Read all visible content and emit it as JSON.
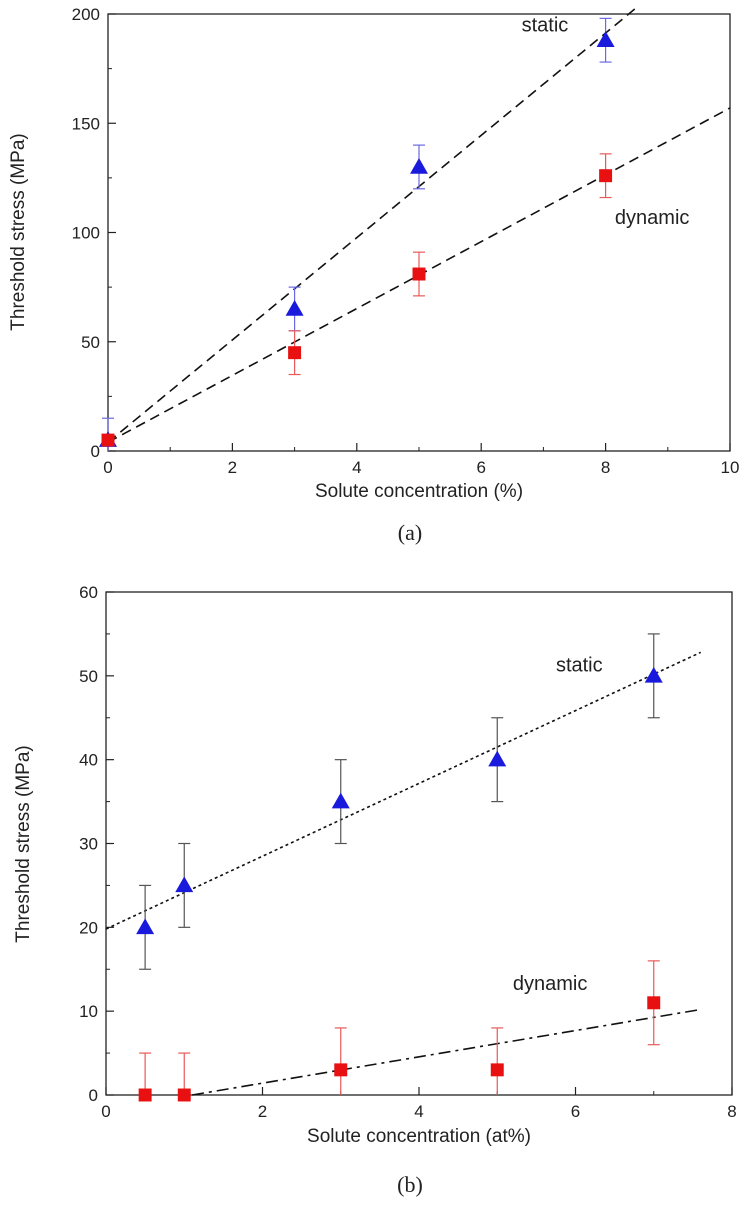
{
  "chart_data": [
    {
      "type": "scatter",
      "panel_label": "(a)",
      "xlabel": "Solute concentration (%)",
      "ylabel": "Threshold stress (MPa)",
      "xlim": [
        0,
        10
      ],
      "ylim": [
        0,
        200
      ],
      "xticks": [
        0,
        2,
        4,
        6,
        8,
        10
      ],
      "yticks": [
        0,
        50,
        100,
        150,
        200
      ],
      "grid": false,
      "series": [
        {
          "name": "static",
          "marker": "triangle",
          "color": "#1a1adc",
          "errorbar_color": "#6a6ae0",
          "x": [
            0,
            3,
            5,
            8
          ],
          "y": [
            5,
            65,
            130,
            188
          ],
          "error": [
            10,
            10,
            10,
            10
          ],
          "fit_line": {
            "style": "dashed",
            "x": [
              0,
              8.5
            ],
            "y": [
              4,
              203
            ]
          }
        },
        {
          "name": "dynamic",
          "marker": "square",
          "color": "#e81010",
          "errorbar_color": "#e85a5a",
          "x": [
            0,
            3,
            5,
            8
          ],
          "y": [
            5,
            45,
            81,
            126
          ],
          "error": [
            2,
            10,
            10,
            10
          ],
          "fit_line": {
            "style": "dashed",
            "x": [
              0,
              10
            ],
            "y": [
              4,
              157
            ]
          }
        }
      ],
      "annotations": [
        {
          "text": "static",
          "x": 6.65,
          "y": 192
        },
        {
          "text": "dynamic",
          "x": 8.15,
          "y": 104
        }
      ]
    },
    {
      "type": "scatter",
      "panel_label": "(b)",
      "xlabel": "Solute concentration (at%)",
      "ylabel": "Threshold stress (MPa)",
      "xlim": [
        0,
        8
      ],
      "ylim": [
        0,
        60
      ],
      "xticks": [
        0,
        2,
        4,
        6,
        8
      ],
      "yticks": [
        0,
        10,
        20,
        30,
        40,
        50,
        60
      ],
      "grid": false,
      "series": [
        {
          "name": "static",
          "marker": "triangle",
          "color": "#1a1adc",
          "errorbar_color": "#555555",
          "x": [
            0.5,
            1,
            3,
            5,
            7
          ],
          "y": [
            20,
            25,
            35,
            40,
            50
          ],
          "error": [
            5,
            5,
            5,
            5,
            5
          ],
          "fit_line": {
            "style": "dotted",
            "x": [
              0,
              7.6
            ],
            "y": [
              19.8,
              52.8
            ]
          }
        },
        {
          "name": "dynamic",
          "marker": "square",
          "color": "#e81010",
          "errorbar_color": "#e85a5a",
          "x": [
            0.5,
            1,
            3,
            5,
            7
          ],
          "y": [
            0,
            0,
            3,
            3,
            11
          ],
          "error": [
            5,
            5,
            5,
            5,
            5
          ],
          "fit_line": {
            "style": "dashdot",
            "x": [
              1.1,
              7.6
            ],
            "y": [
              0,
              10.2
            ]
          }
        }
      ],
      "annotations": [
        {
          "text": "static",
          "x": 5.75,
          "y": 50.5
        },
        {
          "text": "dynamic",
          "x": 5.2,
          "y": 12.5
        }
      ]
    }
  ]
}
